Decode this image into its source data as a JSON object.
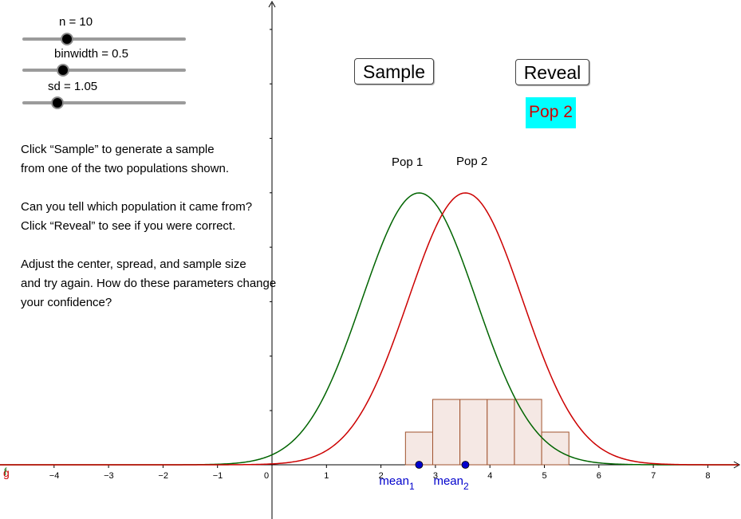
{
  "sliders": [
    {
      "id": "n",
      "label": "n = 10",
      "value": 10,
      "min": 1,
      "max": 50
    },
    {
      "id": "binwidth",
      "label": "binwidth = 0.5",
      "value": 0.5,
      "min": 0.1,
      "max": 2
    },
    {
      "id": "sd",
      "label": "sd = 1.05",
      "value": 1.05,
      "min": 0.5,
      "max": 3
    }
  ],
  "buttons": {
    "sample": "Sample",
    "reveal": "Reveal"
  },
  "reveal_result": "Pop 2",
  "instructions": [
    "Click “Sample” to generate a sample\nfrom one of the two populations shown.",
    "Can you tell which population it came from?\nClick “Reveal” to see if you were correct.",
    "Adjust the center, spread, and sample size\nand try again. How do these parameters change\nyour confidence?"
  ],
  "chart_data": {
    "type": "graph",
    "x_ticks": [
      "−4",
      "−3",
      "−2",
      "−1",
      "0",
      "1",
      "2",
      "3",
      "4",
      "5",
      "6",
      "7",
      "8"
    ],
    "x_tick_values": [
      -4,
      -3,
      -2,
      -1,
      0,
      1,
      2,
      3,
      4,
      5,
      6,
      7,
      8
    ],
    "xlim": [
      -5,
      8.6
    ],
    "curves": [
      {
        "name": "Pop 1",
        "mean": 2.7,
        "sd": 1.05,
        "color": "#006400"
      },
      {
        "name": "Pop 2",
        "mean": 3.55,
        "sd": 1.05,
        "color": "#cc0000"
      }
    ],
    "histogram": {
      "bin_start": 2.45,
      "binwidth": 0.5,
      "counts": [
        1,
        2,
        2,
        2,
        2,
        1
      ],
      "fill": "#f5e8e4",
      "stroke": "#a0522d"
    },
    "means": [
      {
        "label": "mean",
        "sub": "1",
        "x": 2.7
      },
      {
        "label": "mean",
        "sub": "2",
        "x": 3.55
      }
    ],
    "axis_label_left": "g",
    "axis_label_left_overlay": "f",
    "colors": {
      "axis": "#000000",
      "mean_point": "#0000cc",
      "mean_label": "#0000cc",
      "fn_label": "#cc0000"
    }
  }
}
